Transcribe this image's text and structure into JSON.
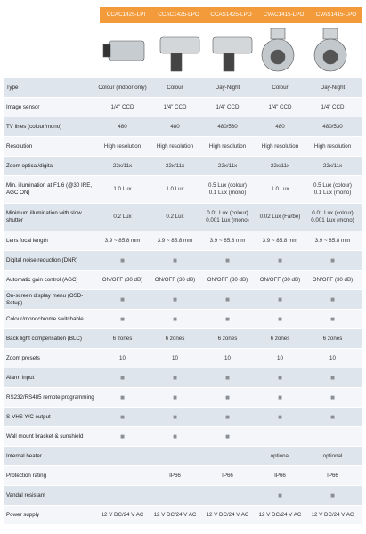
{
  "table": {
    "models": [
      "CCAC1425-LPI",
      "CCAC1425-LPO",
      "CCAS1425-LPO",
      "CVAC1415-LPO",
      "CVAS1415-LPO"
    ],
    "rows": [
      {
        "label": "Type",
        "cells": [
          "Colour (indoor only)",
          "Colour",
          "Day-Night",
          "Colour",
          "Day-Night"
        ]
      },
      {
        "label": "Image sensor",
        "cells": [
          "1/4\" CCD",
          "1/4\" CCD",
          "1/4\" CCD",
          "1/4\" CCD",
          "1/4\" CCD"
        ]
      },
      {
        "label": "TV lines (colour/mono)",
        "cells": [
          "480",
          "480",
          "480/530",
          "480",
          "480/530"
        ]
      },
      {
        "label": "Resolution",
        "cells": [
          "High resolution",
          "High resolution",
          "High resolution",
          "High resolution",
          "High resolution"
        ]
      },
      {
        "label": "Zoom optical/digital",
        "cells": [
          "22x/11x",
          "22x/11x",
          "22x/11x",
          "22x/11x",
          "22x/11x"
        ]
      },
      {
        "label": "Min. illumination at F1.6 (@30 IRE, AGC ON)",
        "cells": [
          "1.0 Lux",
          "1.0 Lux",
          "0.5 Lux (colour)\n0.1 Lux (mono)",
          "1.0 Lux",
          "0.5 Lux (colour)\n0.1 Lux (mono)"
        ]
      },
      {
        "label": "Minimum illumination with slow shutter",
        "cells": [
          "0.2 Lux",
          "0.2 Lux",
          "0.01 Lux (colour)\n0.001 Lux (mono)",
          "0.02 Lux (Farbe)",
          "0.01 Lux (colour)\n0.001 Lux (mono)"
        ]
      },
      {
        "label": "Lens focal length",
        "cells": [
          "3.9 ~ 85.8 mm",
          "3.9 ~ 85.8 mm",
          "3.9 ~ 85.8 mm",
          "3.9 ~ 85.8 mm",
          "3.9 ~ 85.8 mm"
        ]
      },
      {
        "label": "Digital noise reduction (DNR)",
        "cells": [
          "■",
          "■",
          "■",
          "■",
          "■"
        ]
      },
      {
        "label": "Automatic gain control (AGC)",
        "cells": [
          "ON/OFF (30 dB)",
          "ON/OFF (30 dB)",
          "ON/OFF (30 dB)",
          "ON/OFF (30 dB)",
          "ON/OFF (30 dB)"
        ]
      },
      {
        "label": "On-screen display menu (OSD-Setup)",
        "cells": [
          "■",
          "■",
          "■",
          "■",
          "■"
        ]
      },
      {
        "label": "Colour/monochrome switchable",
        "cells": [
          "■",
          "■",
          "■",
          "■",
          "■"
        ]
      },
      {
        "label": "Back light compensation (BLC)",
        "cells": [
          "6 zones",
          "6 zones",
          "6 zones",
          "6 zones",
          "6 zones"
        ]
      },
      {
        "label": "Zoom presets",
        "cells": [
          "10",
          "10",
          "10",
          "10",
          "10"
        ]
      },
      {
        "label": "Alarm input",
        "cells": [
          "■",
          "■",
          "■",
          "■",
          "■"
        ]
      },
      {
        "label": "RS232/RS485 remote programming",
        "cells": [
          "■",
          "■",
          "■",
          "■",
          "■"
        ]
      },
      {
        "label": "S-VHS Y/C output",
        "cells": [
          "■",
          "■",
          "■",
          "■",
          "■"
        ]
      },
      {
        "label": "Wall mount bracket & sunshield",
        "cells": [
          "■",
          "■",
          "■",
          null,
          null
        ]
      },
      {
        "label": "Internal heater",
        "cells": [
          null,
          null,
          null,
          "optional",
          "optional"
        ]
      },
      {
        "label": "Protection rating",
        "cells": [
          null,
          "IP66",
          "IP66",
          "IP66",
          "IP66"
        ]
      },
      {
        "label": "Vandal resistant",
        "cells": [
          null,
          null,
          null,
          "■",
          "■"
        ]
      },
      {
        "label": "Power supply",
        "cells": [
          "12 V DC/24 V AC",
          "12 V DC/24 V AC",
          "12 V DC/24 V AC",
          "12 V DC/24 V AC",
          "12 V DC/24 V AC"
        ]
      }
    ]
  }
}
